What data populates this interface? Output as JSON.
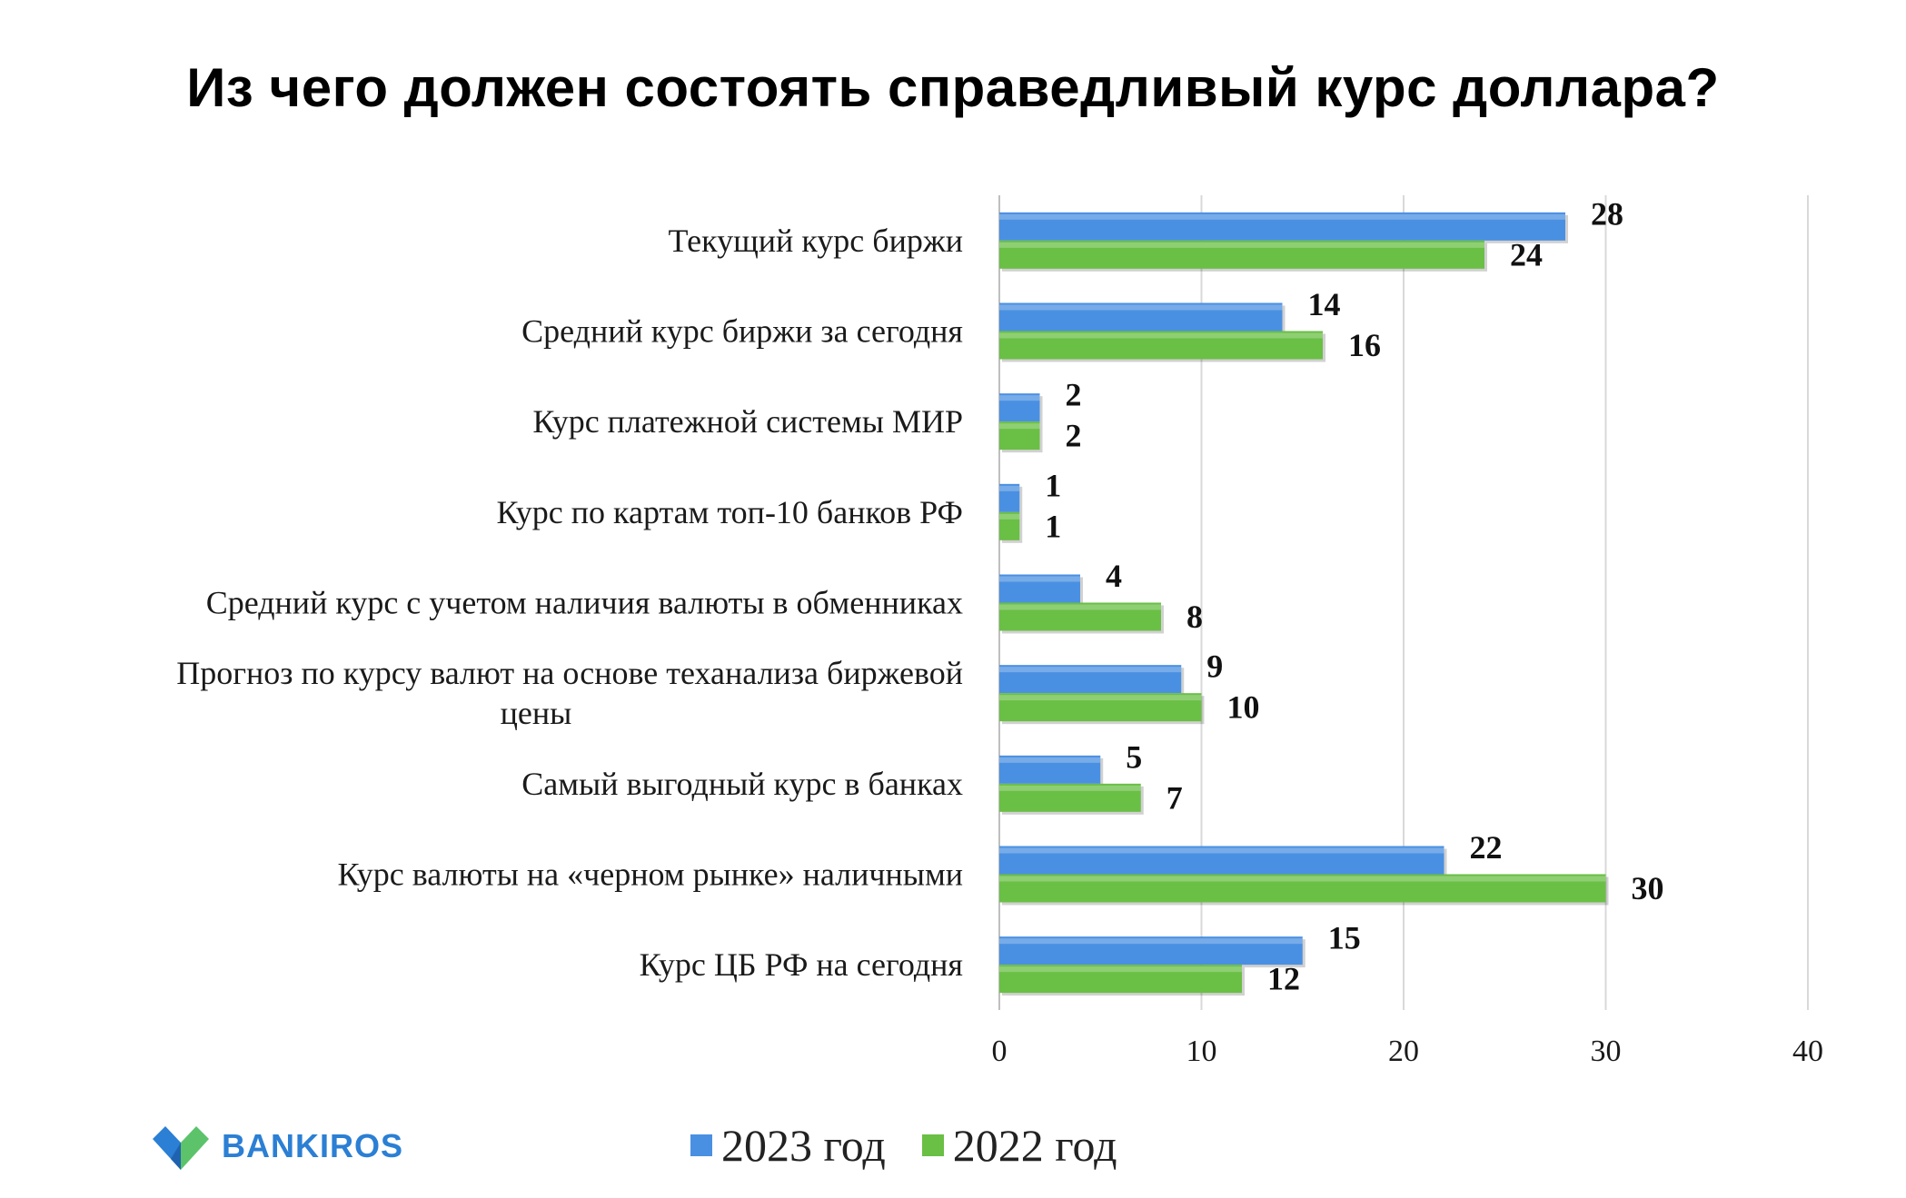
{
  "title": "Из чего должен состоять справедливый курс доллара?",
  "brand": {
    "name": "BANKIROS",
    "logo_icon": "bankiros-logo-icon"
  },
  "colors": {
    "series_2023": "#4a90e2",
    "series_2022": "#6abf45",
    "grid": "#d9d9d9",
    "axis": "#bfbfbf"
  },
  "chart_data": {
    "type": "bar",
    "orientation": "horizontal",
    "title": "Из чего должен состоять справедливый курс доллара?",
    "categories": [
      "Текущий курс биржи",
      "Средний курс биржи за сегодня",
      "Курс платежной системы МИР",
      "Курс по картам топ-10 банков РФ",
      "Средний курс с учетом наличия валюты в обменниках",
      "Прогноз по курсу валют на основе теханализа биржевой цены",
      "Самый выгодный курс в банках",
      "Курс валюты на «черном рынке» наличными",
      "Курс ЦБ РФ на сегодня"
    ],
    "category_lines": [
      [
        "Текущий курс биржи"
      ],
      [
        "Средний курс биржи за сегодня"
      ],
      [
        "Курс платежной системы МИР"
      ],
      [
        "Курс по картам топ-10 банков РФ"
      ],
      [
        "Средний курс с учетом наличия валюты в обменниках"
      ],
      [
        "Прогноз по курсу валют на основе теханализа биржевой",
        "цены"
      ],
      [
        "Самый выгодный курс в банках"
      ],
      [
        "Курс валюты на «черном рынке» наличными"
      ],
      [
        "Курс ЦБ РФ на сегодня"
      ]
    ],
    "series": [
      {
        "name": "2023 год",
        "values": [
          28,
          14,
          2,
          1,
          4,
          9,
          5,
          22,
          15
        ]
      },
      {
        "name": "2022 год",
        "values": [
          24,
          16,
          2,
          1,
          8,
          10,
          7,
          30,
          12
        ]
      }
    ],
    "xlim": [
      0,
      40
    ],
    "xticks": [
      0,
      10,
      20,
      30,
      40
    ],
    "grid": true,
    "legend_position": "bottom"
  }
}
